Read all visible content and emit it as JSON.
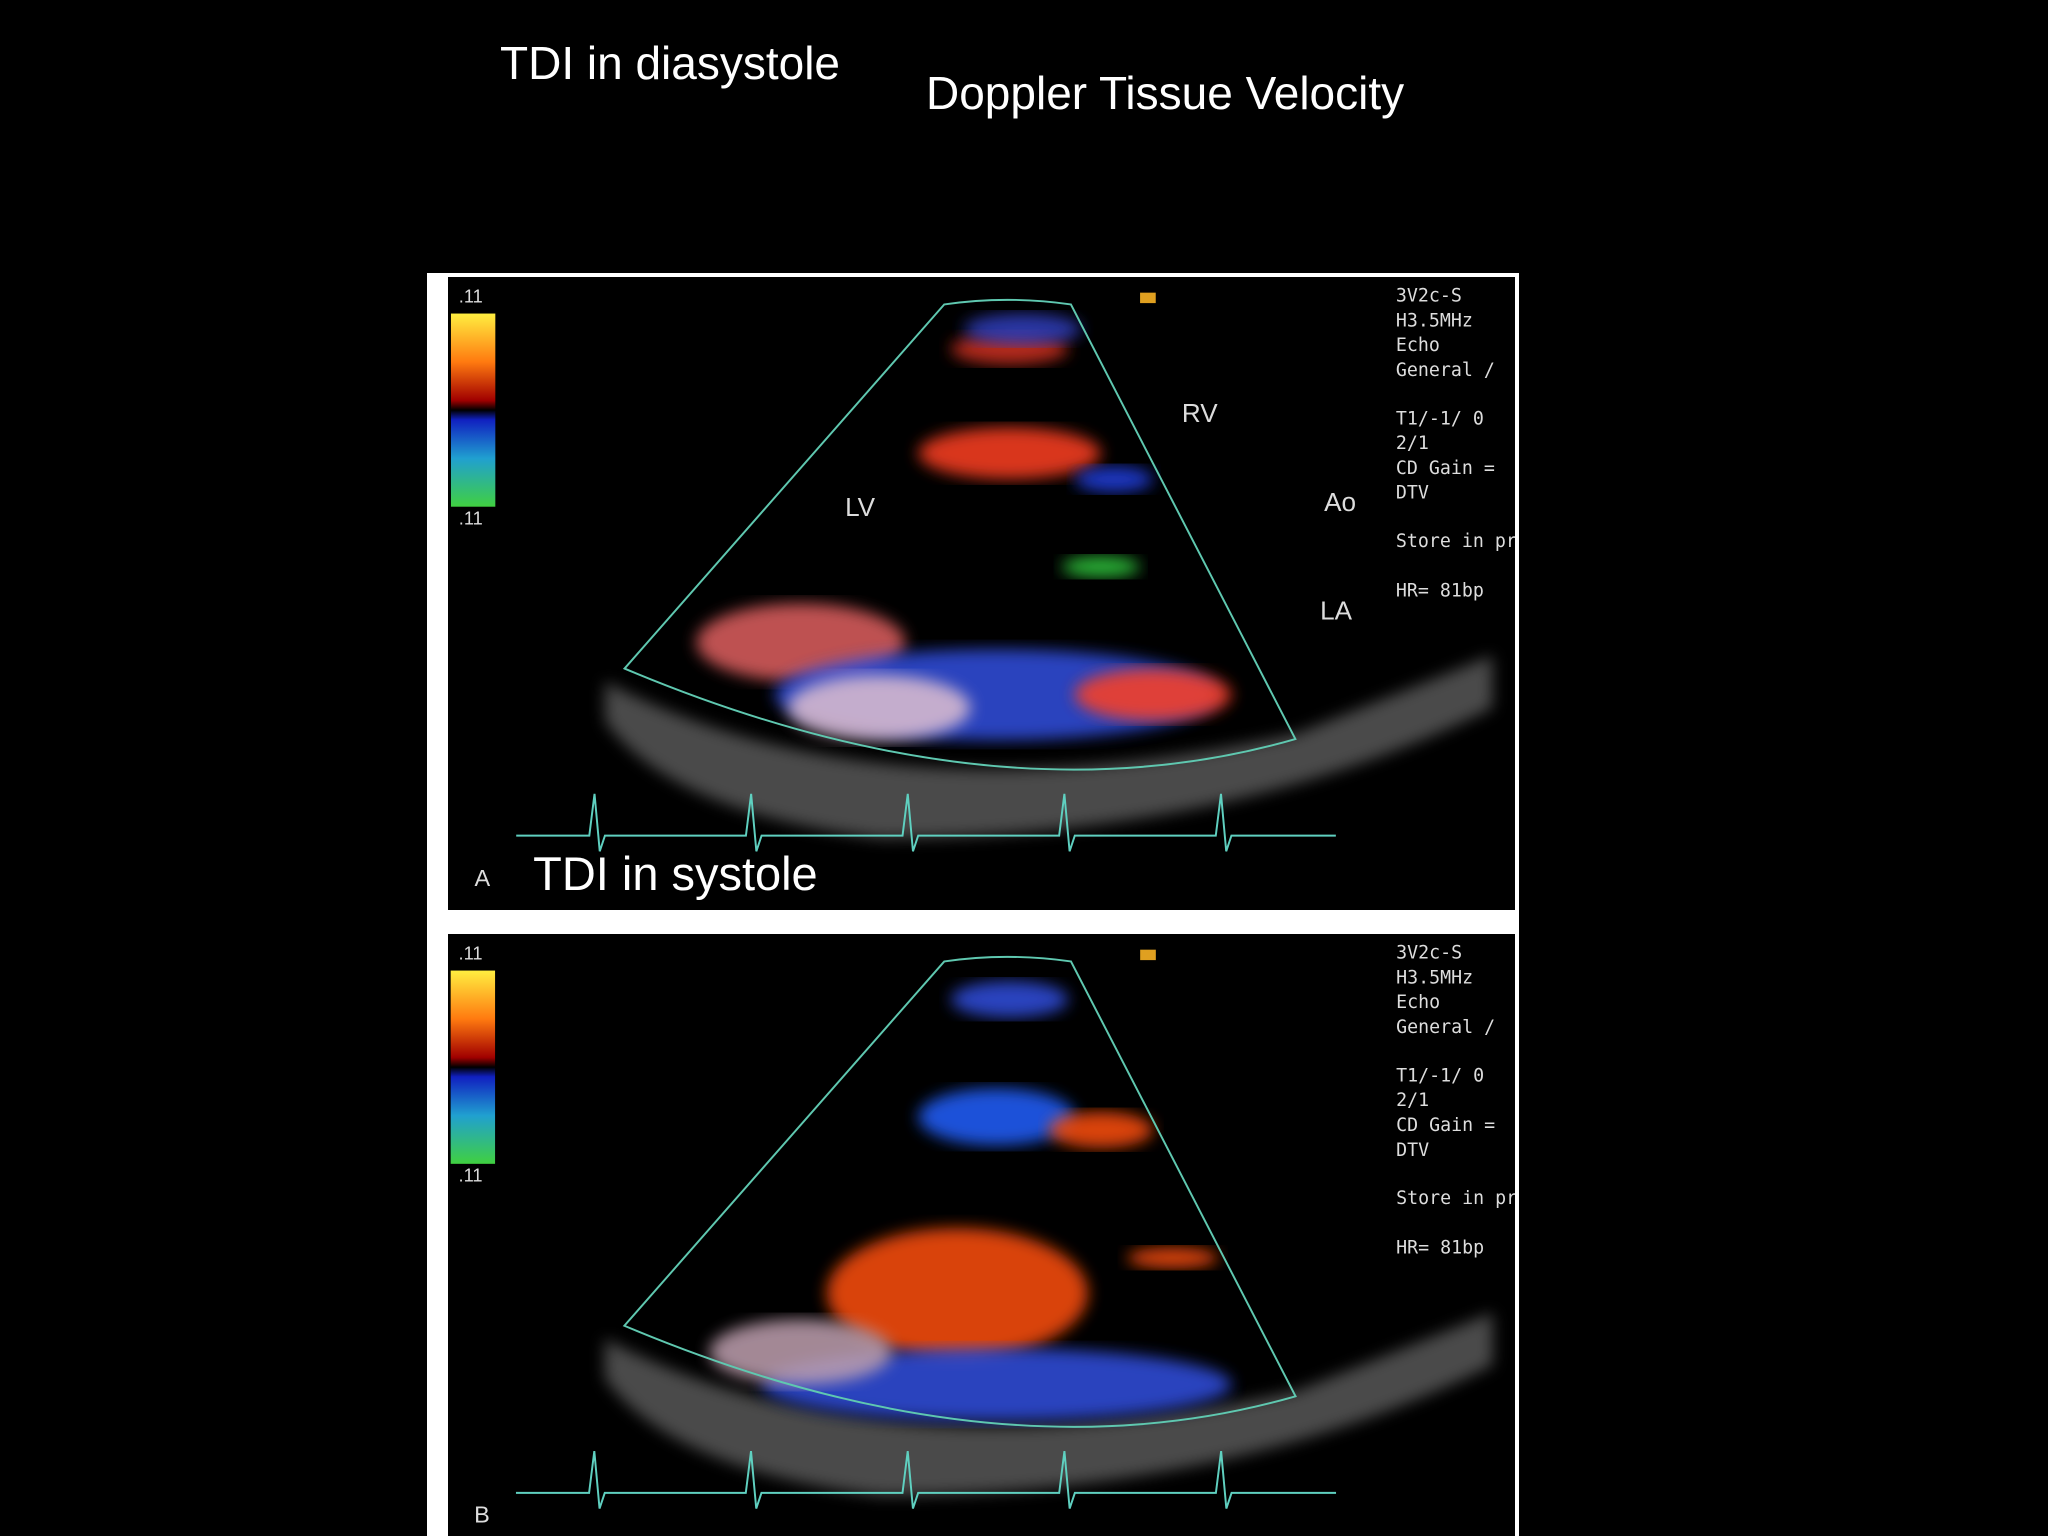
{
  "slide": {
    "title_left": "TDI in diasystole",
    "title_right": "Doppler Tissue Velocity"
  },
  "panels": [
    {
      "label": "A",
      "scale_top": ".11",
      "scale_bottom": ".11",
      "settings": [
        "3V2c-S",
        "H3.5MHz",
        "Echo",
        "General /",
        "T1/-1/ 0",
        "2/1",
        "CD Gain =",
        "DTV",
        "Store in pr",
        "HR= 81bp"
      ],
      "chambers": [
        "LV",
        "RV",
        "Ao",
        "LA"
      ],
      "caption": "TDI in systole"
    },
    {
      "label": "B",
      "scale_top": ".11",
      "scale_bottom": ".11",
      "settings": [
        "3V2c-S",
        "H3.5MHz",
        "Echo",
        "General /",
        "T1/-1/ 0",
        "2/1",
        "CD Gain =",
        "DTV",
        "Store in pr",
        "HR= 81bp"
      ]
    }
  ]
}
